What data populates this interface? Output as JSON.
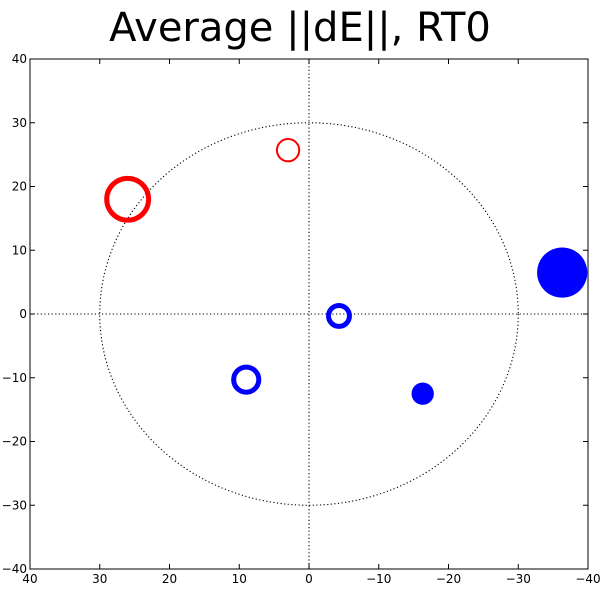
{
  "chart_data": {
    "type": "scatter",
    "title": "Average ||dE||, RT0",
    "xlabel": "",
    "ylabel": "",
    "xlim": [
      40,
      -40
    ],
    "ylim": [
      -40,
      40
    ],
    "x_reversed": true,
    "grid": false,
    "xticks": [
      40,
      30,
      20,
      10,
      0,
      -10,
      -20,
      -30,
      -40
    ],
    "yticks": [
      40,
      30,
      20,
      10,
      0,
      -10,
      -20,
      -30,
      -40
    ],
    "xtick_labels": [
      "40",
      "30",
      "20",
      "10",
      "0",
      "−10",
      "−20",
      "−30",
      "−40"
    ],
    "ytick_labels": [
      "40",
      "30",
      "20",
      "10",
      "0",
      "−10",
      "−20",
      "−30",
      "−40"
    ],
    "reference_circle": {
      "radius": 30,
      "style": "dotted"
    },
    "reference_lines": {
      "x0": true,
      "y0": true,
      "style": "dotted"
    },
    "points": [
      {
        "x": 26,
        "y": 18,
        "radius": 3.0,
        "color": "#ff0000",
        "filled": false,
        "stroke": "thick"
      },
      {
        "x": 3,
        "y": 25.7,
        "radius": 1.6,
        "color": "#ff0000",
        "filled": false,
        "stroke": "thin"
      },
      {
        "x": 9,
        "y": -10.3,
        "radius": 1.8,
        "color": "#0000ff",
        "filled": false,
        "stroke": "thick"
      },
      {
        "x": -4.3,
        "y": -0.3,
        "radius": 1.5,
        "color": "#0000ff",
        "filled": false,
        "stroke": "thick"
      },
      {
        "x": -16.3,
        "y": -12.5,
        "radius": 1.6,
        "color": "#0000ff",
        "filled": true,
        "stroke": "none"
      },
      {
        "x": -36.3,
        "y": 6.5,
        "radius": 3.6,
        "color": "#0000ff",
        "filled": true,
        "stroke": "none"
      }
    ]
  }
}
